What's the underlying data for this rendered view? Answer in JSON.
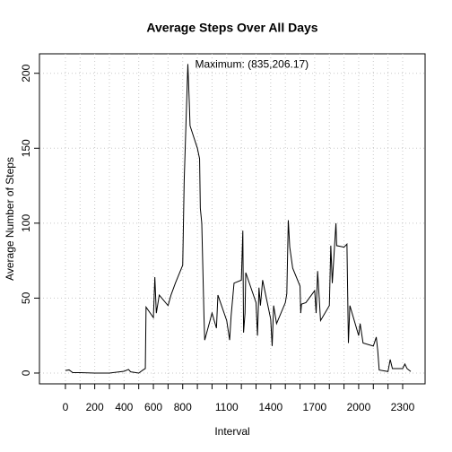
{
  "chart_data": {
    "type": "line",
    "title": "Average Steps Over All Days",
    "x_label": "Interval",
    "y_label": "Average Number of Steps",
    "annotation": "Maximum: (835,206.17)",
    "color": "#000000",
    "grid": true,
    "x": [
      0,
      25,
      50,
      100,
      200,
      300,
      400,
      430,
      445,
      500,
      530,
      545,
      550,
      600,
      610,
      620,
      640,
      700,
      720,
      750,
      800,
      810,
      835,
      845,
      850,
      900,
      915,
      920,
      930,
      945,
      950,
      1000,
      1030,
      1040,
      1100,
      1120,
      1130,
      1150,
      1200,
      1210,
      1215,
      1225,
      1230,
      1300,
      1310,
      1320,
      1330,
      1345,
      1400,
      1410,
      1420,
      1440,
      1500,
      1510,
      1520,
      1530,
      1550,
      1600,
      1605,
      1610,
      1640,
      1700,
      1710,
      1720,
      1740,
      1800,
      1810,
      1820,
      1845,
      1850,
      1900,
      1920,
      1930,
      1940,
      2000,
      2010,
      2030,
      2100,
      2120,
      2130,
      2140,
      2200,
      2215,
      2230,
      2300,
      2315,
      2330,
      2355
    ],
    "values": [
      1.7,
      2.1,
      0.3,
      0.3,
      0,
      0,
      1.2,
      2.4,
      0.8,
      0,
      2.1,
      3,
      44,
      37,
      64,
      40,
      52,
      45,
      52,
      60,
      72,
      128,
      206.17,
      180,
      165,
      150,
      143,
      110,
      100,
      38,
      22,
      40,
      30,
      52,
      35,
      22,
      38,
      60,
      62,
      95,
      27,
      40,
      67,
      47,
      25,
      57,
      45,
      62,
      36,
      18,
      45,
      33,
      47,
      53,
      102,
      84,
      70,
      58,
      40,
      46,
      47,
      55,
      40,
      68,
      35,
      45,
      85,
      60,
      100,
      85,
      84,
      86,
      20,
      45,
      25,
      33,
      20,
      18,
      24,
      15,
      2,
      1,
      9,
      3,
      3,
      6,
      3,
      1
    ],
    "xlim": [
      -177,
      2453
    ],
    "ylim": [
      -7.2,
      213
    ],
    "xticks": [
      0,
      200,
      400,
      600,
      800,
      1100,
      1400,
      1700,
      2000,
      2300
    ],
    "xminor_ticks": [
      100,
      300,
      500,
      700,
      900,
      1000,
      1200,
      1300,
      1500,
      1600,
      1800,
      1900,
      2100,
      2200
    ],
    "yticks": [
      0,
      50,
      100,
      150,
      200
    ]
  }
}
